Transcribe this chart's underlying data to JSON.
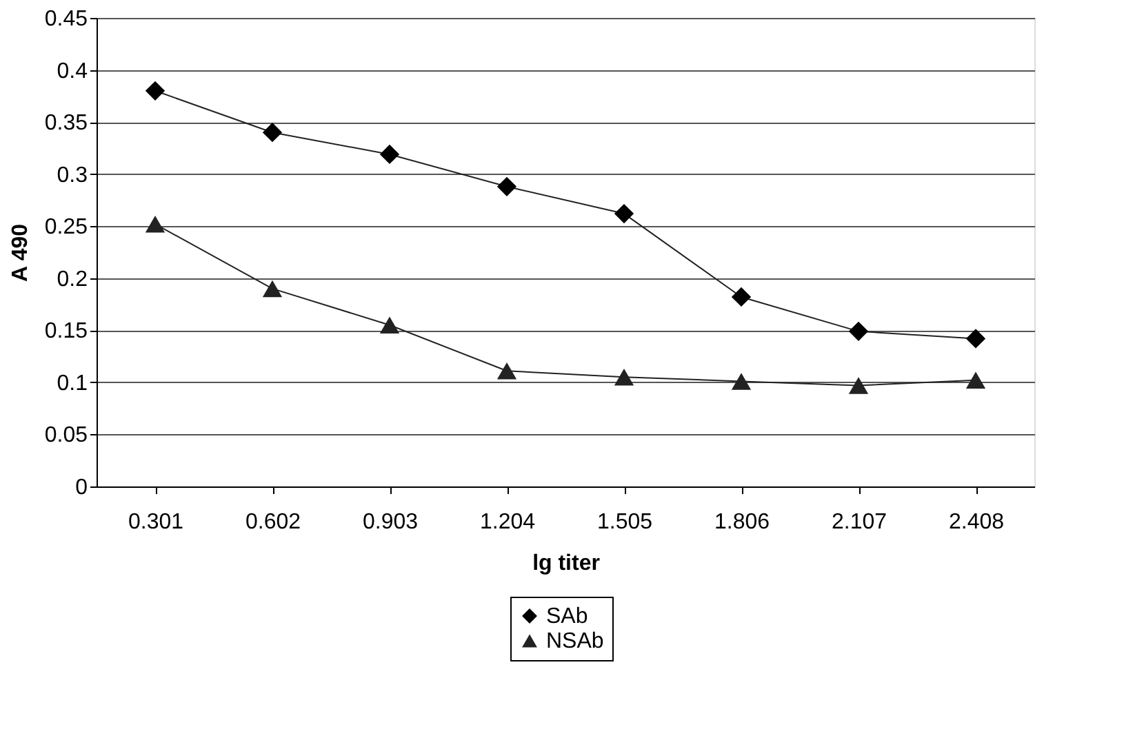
{
  "chart_data": {
    "type": "line",
    "xlabel": "lg titer",
    "ylabel": "A 490",
    "categories": [
      "0.301",
      "0.602",
      "0.903",
      "1.204",
      "1.505",
      "1.806",
      "2.107",
      "2.408"
    ],
    "series": [
      {
        "name": "SAb",
        "color": "#000000",
        "marker": "diamond",
        "values": [
          0.38,
          0.34,
          0.319,
          0.288,
          0.262,
          0.182,
          0.149,
          0.142
        ]
      },
      {
        "name": "NSAb",
        "color": "#222222",
        "marker": "triangle",
        "values": [
          0.252,
          0.19,
          0.155,
          0.111,
          0.105,
          0.101,
          0.097,
          0.102
        ]
      }
    ],
    "ylim": [
      0,
      0.45
    ],
    "yticks": [
      0,
      0.05,
      0.1,
      0.15,
      0.2,
      0.25,
      0.3,
      0.35,
      0.4,
      0.45
    ],
    "grid": "y",
    "legend": "bottom",
    "line_style": "solid"
  }
}
